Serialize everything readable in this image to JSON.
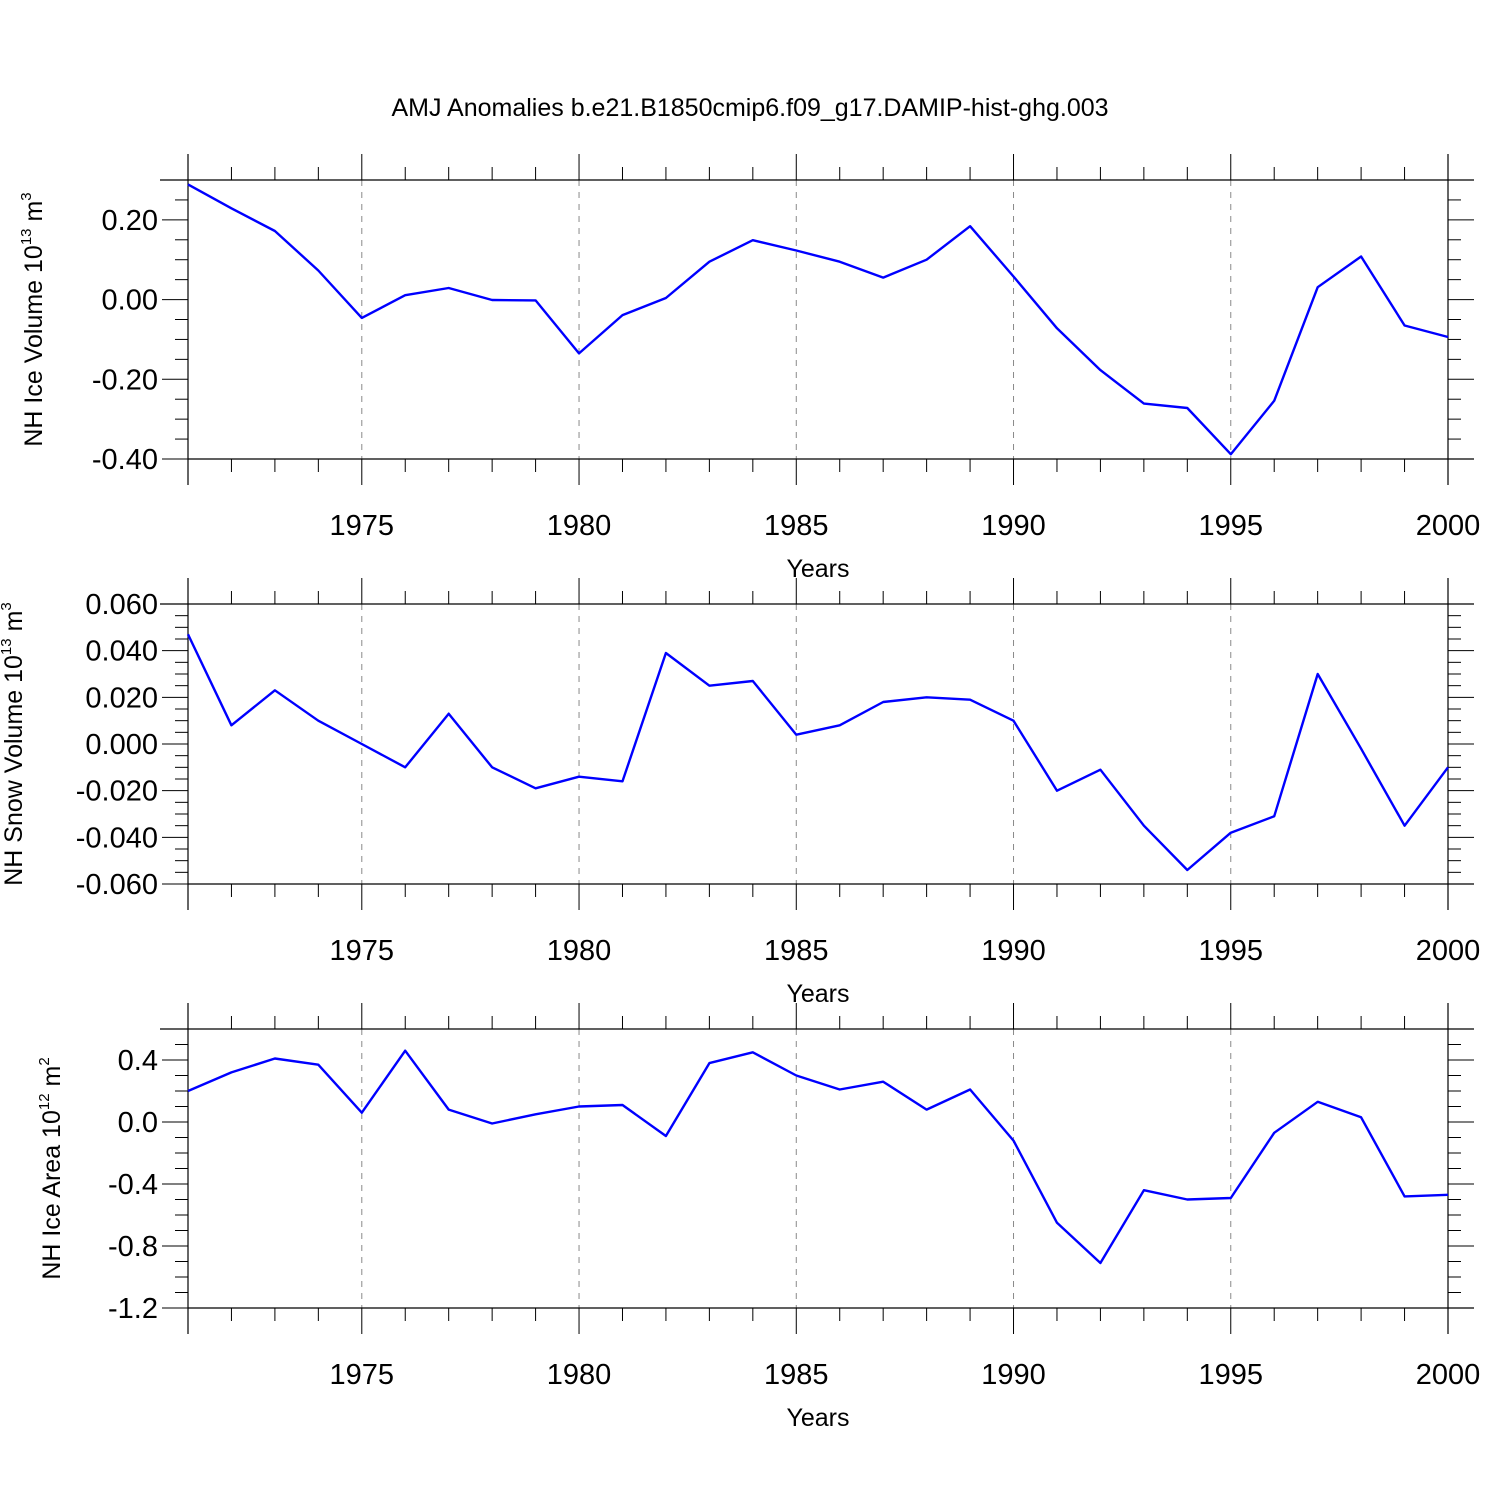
{
  "title": "AMJ Anomalies b.e21.B1850cmip6.f09_g17.DAMIP-hist-ghg.003",
  "colors": {
    "series": "#0000ff",
    "axes": "#000000",
    "grid": "#8a8a8a"
  },
  "chart_data": [
    {
      "type": "line",
      "ylabel_prefix": "NH Ice Volume 10",
      "ylabel_exp": "13",
      "ylabel_unit": " m",
      "ylabel_unit_exp": "3",
      "xlabel": "Years",
      "xlim": [
        1971,
        2000
      ],
      "ylim": [
        -0.4,
        0.3
      ],
      "xticks": [
        1975,
        1980,
        1985,
        1990,
        1995,
        2000
      ],
      "xtick_labels": [
        "1975",
        "1980",
        "1985",
        "1990",
        "1995",
        "2000"
      ],
      "yticks": [
        -0.4,
        -0.2,
        0.0,
        0.2
      ],
      "ytick_labels": [
        "-0.40",
        "-0.20",
        "0.00",
        "0.20"
      ],
      "y_minor_step": 0.05,
      "grid": "vertical dashed at major x ticks",
      "x": [
        1971,
        1972,
        1973,
        1974,
        1975,
        1976,
        1977,
        1978,
        1979,
        1980,
        1981,
        1982,
        1983,
        1984,
        1985,
        1986,
        1987,
        1988,
        1989,
        1990,
        1991,
        1992,
        1993,
        1994,
        1995,
        1996,
        1997,
        1998,
        1999,
        2000
      ],
      "series": [
        {
          "values": [
            0.289,
            0.229,
            0.172,
            0.073,
            -0.046,
            0.011,
            0.029,
            -0.001,
            -0.002,
            -0.135,
            -0.039,
            0.004,
            0.095,
            0.149,
            0.123,
            0.095,
            0.055,
            0.1,
            0.184,
            0.058,
            -0.072,
            -0.177,
            -0.261,
            -0.272,
            -0.388,
            -0.254,
            0.031,
            0.108,
            -0.065,
            -0.094
          ]
        }
      ]
    },
    {
      "type": "line",
      "ylabel_prefix": "NH Snow Volume 10",
      "ylabel_exp": "13",
      "ylabel_unit": " m",
      "ylabel_unit_exp": "3",
      "xlabel": "Years",
      "xlim": [
        1971,
        2000
      ],
      "ylim": [
        -0.06,
        0.06
      ],
      "xticks": [
        1975,
        1980,
        1985,
        1990,
        1995,
        2000
      ],
      "xtick_labels": [
        "1975",
        "1980",
        "1985",
        "1990",
        "1995",
        "2000"
      ],
      "yticks": [
        -0.06,
        -0.04,
        -0.02,
        0.0,
        0.02,
        0.04,
        0.06
      ],
      "ytick_labels": [
        "-0.060",
        "-0.040",
        "-0.020",
        "0.000",
        "0.020",
        "0.040",
        "0.060"
      ],
      "y_minor_step": 0.005,
      "grid": "vertical dashed at major x ticks",
      "x": [
        1971,
        1972,
        1973,
        1974,
        1975,
        1976,
        1977,
        1978,
        1979,
        1980,
        1981,
        1982,
        1983,
        1984,
        1985,
        1986,
        1987,
        1988,
        1989,
        1990,
        1991,
        1992,
        1993,
        1994,
        1995,
        1996,
        1997,
        1998,
        1999,
        2000
      ],
      "series": [
        {
          "values": [
            0.047,
            0.008,
            0.023,
            0.01,
            0.0,
            -0.01,
            0.013,
            -0.01,
            -0.019,
            -0.014,
            -0.016,
            0.039,
            0.025,
            0.027,
            0.004,
            0.008,
            0.018,
            0.02,
            0.019,
            0.01,
            -0.02,
            -0.011,
            -0.035,
            -0.054,
            -0.038,
            -0.031,
            0.03,
            -0.002,
            -0.035,
            -0.01
          ]
        }
      ]
    },
    {
      "type": "line",
      "ylabel_prefix": "NH Ice Area 10",
      "ylabel_exp": "12",
      "ylabel_unit": " m",
      "ylabel_unit_exp": "2",
      "xlabel": "Years",
      "xlim": [
        1971,
        2000
      ],
      "ylim": [
        -1.2,
        0.6
      ],
      "xticks": [
        1975,
        1980,
        1985,
        1990,
        1995,
        2000
      ],
      "xtick_labels": [
        "1975",
        "1980",
        "1985",
        "1990",
        "1995",
        "2000"
      ],
      "yticks": [
        -1.2,
        -0.8,
        -0.4,
        0.0,
        0.4
      ],
      "ytick_labels": [
        "-1.2",
        "-0.8",
        "-0.4",
        "0.0",
        "0.4"
      ],
      "y_minor_step": 0.1,
      "grid": "vertical dashed at major x ticks",
      "x": [
        1971,
        1972,
        1973,
        1974,
        1975,
        1976,
        1977,
        1978,
        1979,
        1980,
        1981,
        1982,
        1983,
        1984,
        1985,
        1986,
        1987,
        1988,
        1989,
        1990,
        1991,
        1992,
        1993,
        1994,
        1995,
        1996,
        1997,
        1998,
        1999,
        2000
      ],
      "series": [
        {
          "values": [
            0.2,
            0.32,
            0.41,
            0.37,
            0.06,
            0.46,
            0.08,
            -0.01,
            0.05,
            0.1,
            0.11,
            -0.09,
            0.38,
            0.45,
            0.3,
            0.21,
            0.26,
            0.08,
            0.21,
            -0.12,
            -0.65,
            -0.91,
            -0.44,
            -0.5,
            -0.49,
            -0.07,
            0.13,
            0.03,
            -0.48,
            -0.47
          ]
        }
      ]
    }
  ]
}
